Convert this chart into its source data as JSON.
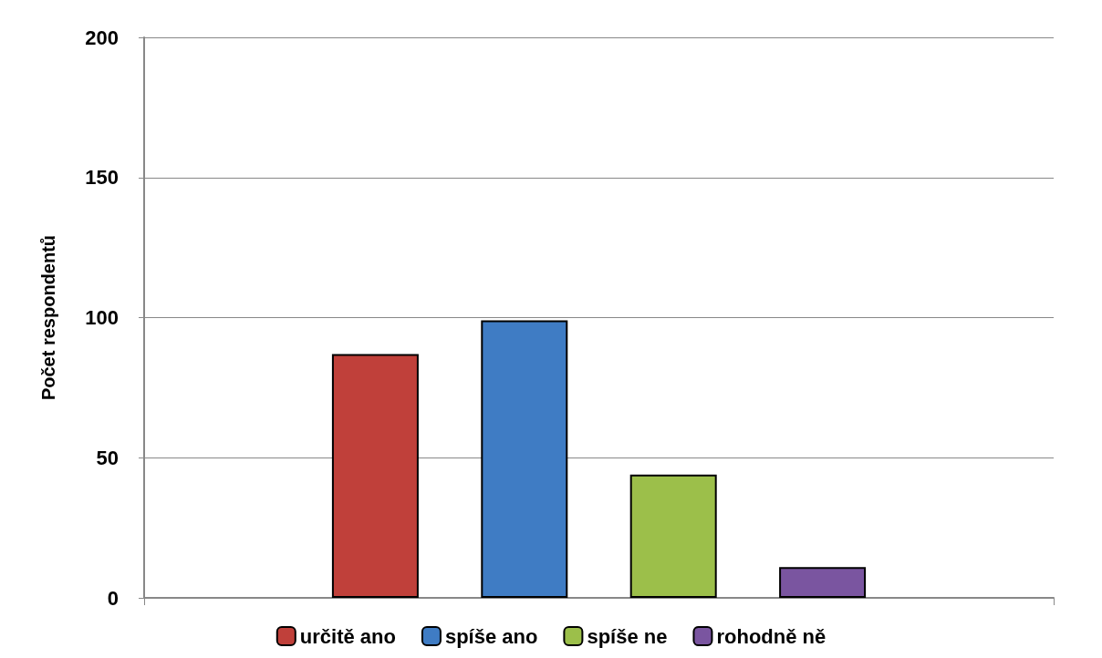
{
  "chart_data": {
    "type": "bar",
    "ylabel": "Počet respondentů",
    "categories": [
      null
    ],
    "series": [
      {
        "name": "určitě ano",
        "color": "#c0403a",
        "values": [
          87
        ]
      },
      {
        "name": "spíše ano",
        "color": "#3f7cc4",
        "values": [
          99
        ]
      },
      {
        "name": "spíše ne",
        "color": "#9cbf4a",
        "values": [
          44
        ]
      },
      {
        "name": "rohodně ně",
        "color": "#7a55a0",
        "values": [
          11
        ]
      }
    ],
    "ylim": [
      0,
      200
    ],
    "yticks": [
      0,
      50,
      100,
      150,
      200
    ],
    "grid": "y",
    "legend": "bottom"
  }
}
